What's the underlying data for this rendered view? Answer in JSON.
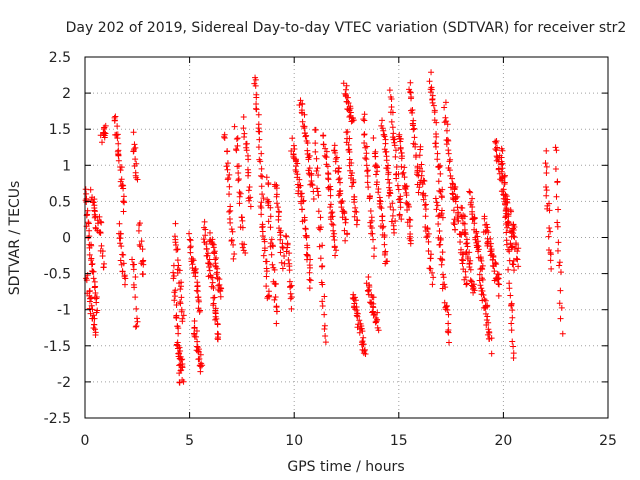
{
  "chart_data": {
    "type": "scatter",
    "title": "Day 202 of 2019, Sidereal Day-to-day VTEC variation (SDTVAR) for receiver str2",
    "xlabel": "GPS time / hours",
    "ylabel": "SDTVAR / TECUs",
    "xlim": [
      0,
      25
    ],
    "ylim": [
      -2.5,
      2.5
    ],
    "xticks": [
      0,
      5,
      10,
      15,
      20,
      25
    ],
    "yticks": [
      -2.5,
      -2,
      -1.5,
      -1,
      -0.5,
      0,
      0.5,
      1,
      1.5,
      2,
      2.5
    ],
    "xtick_labels": [
      "0",
      "5",
      "10",
      "15",
      "20",
      "25"
    ],
    "ytick_labels": [
      "-2.5",
      "-2",
      "-1.5",
      "-1",
      "-0.5",
      "0",
      "0.5",
      "1",
      "1.5",
      "2",
      "2.5"
    ],
    "grid": true,
    "marker": "+",
    "color": "#ff0000",
    "series": [
      {
        "name": "SDTVAR",
        "note": "Clusters of + markers; each segment is a satellite track sampled at equal time steps between the listed start/end points.",
        "segments": [
          {
            "t": [
              0.0,
              0.6
            ],
            "v": [
              0.6,
              -1.0
            ]
          },
          {
            "t": [
              0.1,
              0.5
            ],
            "v": [
              -0.6,
              -1.3
            ]
          },
          {
            "t": [
              0.3,
              0.6
            ],
            "v": [
              0.65,
              0.1
            ]
          },
          {
            "t": [
              0.8,
              1.0
            ],
            "v": [
              1.4,
              1.5
            ]
          },
          {
            "t": [
              0.7,
              0.9
            ],
            "v": [
              0.3,
              -0.5
            ]
          },
          {
            "t": [
              1.4,
              1.9
            ],
            "v": [
              1.7,
              0.4
            ]
          },
          {
            "t": [
              1.6,
              1.9
            ],
            "v": [
              0.1,
              -0.6
            ]
          },
          {
            "t": [
              2.3,
              2.5
            ],
            "v": [
              1.4,
              0.8
            ]
          },
          {
            "t": [
              2.3,
              2.5
            ],
            "v": [
              -0.2,
              -1.3
            ]
          },
          {
            "t": [
              2.6,
              2.8
            ],
            "v": [
              0.2,
              -0.6
            ]
          },
          {
            "t": [
              4.2,
              4.6
            ],
            "v": [
              -0.4,
              -2.05
            ]
          },
          {
            "t": [
              4.3,
              4.7
            ],
            "v": [
              0.1,
              -1.2
            ]
          },
          {
            "t": [
              4.4,
              4.7
            ],
            "v": [
              -1.4,
              -1.9
            ]
          },
          {
            "t": [
              5.0,
              5.5
            ],
            "v": [
              0.0,
              -1.0
            ]
          },
          {
            "t": [
              5.2,
              5.6
            ],
            "v": [
              -1.2,
              -1.85
            ]
          },
          {
            "t": [
              5.7,
              6.4
            ],
            "v": [
              0.15,
              -1.4
            ]
          },
          {
            "t": [
              6.0,
              6.5
            ],
            "v": [
              0.05,
              -0.8
            ]
          },
          {
            "t": [
              6.7,
              7.1
            ],
            "v": [
              1.5,
              -0.3
            ]
          },
          {
            "t": [
              7.2,
              7.6
            ],
            "v": [
              1.5,
              -0.3
            ]
          },
          {
            "t": [
              7.6,
              7.9
            ],
            "v": [
              1.6,
              0.4
            ]
          },
          {
            "t": [
              8.1,
              8.5
            ],
            "v": [
              2.25,
              0.6
            ]
          },
          {
            "t": [
              8.4,
              8.8
            ],
            "v": [
              0.5,
              -0.9
            ]
          },
          {
            "t": [
              8.7,
              9.2
            ],
            "v": [
              0.8,
              -1.2
            ]
          },
          {
            "t": [
              9.1,
              9.5
            ],
            "v": [
              0.75,
              -0.4
            ]
          },
          {
            "t": [
              9.6,
              9.9
            ],
            "v": [
              0.1,
              -1.0
            ]
          },
          {
            "t": [
              9.9,
              10.4
            ],
            "v": [
              1.3,
              0.4
            ]
          },
          {
            "t": [
              10.3,
              10.9
            ],
            "v": [
              1.9,
              0.6
            ]
          },
          {
            "t": [
              10.4,
              10.8
            ],
            "v": [
              0.4,
              -0.6
            ]
          },
          {
            "t": [
              11.0,
              11.5
            ],
            "v": [
              1.55,
              -1.5
            ]
          },
          {
            "t": [
              11.4,
              12.0
            ],
            "v": [
              1.4,
              -0.2
            ]
          },
          {
            "t": [
              11.9,
              12.5
            ],
            "v": [
              1.3,
              0.0
            ]
          },
          {
            "t": [
              12.4,
              12.8
            ],
            "v": [
              2.1,
              1.6
            ]
          },
          {
            "t": [
              12.5,
              13.0
            ],
            "v": [
              1.5,
              0.2
            ]
          },
          {
            "t": [
              12.8,
              13.4
            ],
            "v": [
              -0.8,
              -1.6
            ]
          },
          {
            "t": [
              13.3,
              13.8
            ],
            "v": [
              1.7,
              -0.2
            ]
          },
          {
            "t": [
              13.5,
              14.0
            ],
            "v": [
              -0.6,
              -1.2
            ]
          },
          {
            "t": [
              13.8,
              14.4
            ],
            "v": [
              1.3,
              -0.4
            ]
          },
          {
            "t": [
              14.2,
              14.8
            ],
            "v": [
              1.6,
              0.1
            ]
          },
          {
            "t": [
              14.6,
              15.1
            ],
            "v": [
              2.0,
              0.2
            ]
          },
          {
            "t": [
              15.0,
              15.6
            ],
            "v": [
              1.5,
              -0.1
            ]
          },
          {
            "t": [
              15.5,
              16.0
            ],
            "v": [
              2.1,
              0.6
            ]
          },
          {
            "t": [
              16.0,
              16.6
            ],
            "v": [
              1.2,
              -0.6
            ]
          },
          {
            "t": [
              16.5,
              17.1
            ],
            "v": [
              2.3,
              0.3
            ]
          },
          {
            "t": [
              16.8,
              17.4
            ],
            "v": [
              0.5,
              -1.4
            ]
          },
          {
            "t": [
              17.2,
              17.7
            ],
            "v": [
              1.8,
              0.1
            ]
          },
          {
            "t": [
              17.6,
              18.2
            ],
            "v": [
              0.8,
              -0.6
            ]
          },
          {
            "t": [
              18.0,
              18.6
            ],
            "v": [
              0.4,
              -0.8
            ]
          },
          {
            "t": [
              18.4,
              19.0
            ],
            "v": [
              0.6,
              -0.5
            ]
          },
          {
            "t": [
              18.9,
              19.4
            ],
            "v": [
              -0.5,
              -1.5
            ]
          },
          {
            "t": [
              19.1,
              19.8
            ],
            "v": [
              0.2,
              -0.7
            ]
          },
          {
            "t": [
              19.6,
              20.2
            ],
            "v": [
              1.4,
              0.2
            ]
          },
          {
            "t": [
              19.9,
              20.5
            ],
            "v": [
              1.2,
              -0.4
            ]
          },
          {
            "t": [
              20.1,
              20.5
            ],
            "v": [
              0.4,
              -1.7
            ]
          },
          {
            "t": [
              20.4,
              20.7
            ],
            "v": [
              0.3,
              -0.3
            ]
          },
          {
            "t": [
              22.0,
              22.3
            ],
            "v": [
              1.1,
              -0.4
            ]
          },
          {
            "t": [
              22.5,
              22.8
            ],
            "v": [
              1.25,
              -1.25
            ]
          }
        ]
      }
    ]
  }
}
